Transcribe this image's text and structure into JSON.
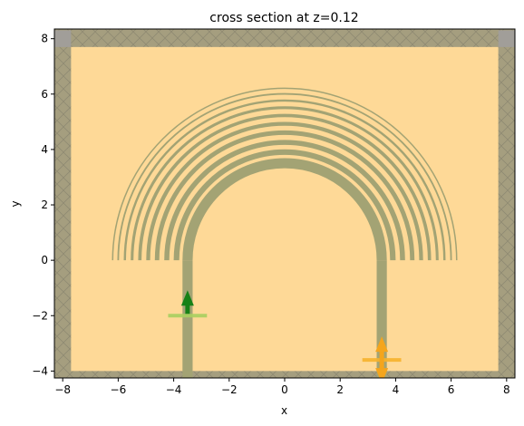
{
  "chart_data": {
    "type": "scatter",
    "title": "cross section at z=0.12",
    "xlabel": "x",
    "ylabel": "y",
    "xlim": [
      -8.3,
      8.3
    ],
    "ylim": [
      -4.25,
      8.35
    ],
    "xticks": [
      -8,
      -6,
      -4,
      -2,
      0,
      2,
      4,
      6,
      8
    ],
    "yticks": [
      -4,
      -2,
      0,
      2,
      4,
      6,
      8
    ],
    "xtick_labels": [
      "−8",
      "−6",
      "−4",
      "−2",
      "0",
      "2",
      "4",
      "6",
      "8"
    ],
    "ytick_labels": [
      "−4",
      "−2",
      "0",
      "2",
      "4",
      "6",
      "8"
    ],
    "grid": false,
    "domain": {
      "xmin": -7.7,
      "xmax": 7.7,
      "ymin": -4.0,
      "ymax": 7.7
    },
    "pml_thickness": 0.6,
    "waveguide": {
      "width": 0.3,
      "x_positions": [
        -3.5,
        3.5
      ],
      "y_bottom": -4.25,
      "y_top": 0
    },
    "bend": {
      "radius": 3.5,
      "width": 0.3
    },
    "grating_rings": [
      {
        "radius": 3.9,
        "width": 0.2
      },
      {
        "radius": 4.25,
        "width": 0.18
      },
      {
        "radius": 4.6,
        "width": 0.16
      },
      {
        "radius": 4.92,
        "width": 0.14
      },
      {
        "radius": 5.22,
        "width": 0.12
      },
      {
        "radius": 5.5,
        "width": 0.1
      },
      {
        "radius": 5.76,
        "width": 0.08
      },
      {
        "radius": 6.0,
        "width": 0.06
      },
      {
        "radius": 6.2,
        "width": 0.04
      }
    ],
    "source": {
      "x": -3.5,
      "y": -2.0,
      "span": 1.4,
      "direction": "+y"
    },
    "monitor": {
      "x": 3.5,
      "y": -3.6,
      "span": 1.4,
      "direction": "±y"
    },
    "colors": {
      "background": "#fed997",
      "structure": "#a3a374",
      "pml": "#a59e7f",
      "pml_corner": "#a19e99",
      "source_bar": "#a8d060",
      "source_arrow": "#178117",
      "monitor_bar": "#f7b32d",
      "monitor_arrow": "#f4a51d"
    }
  }
}
